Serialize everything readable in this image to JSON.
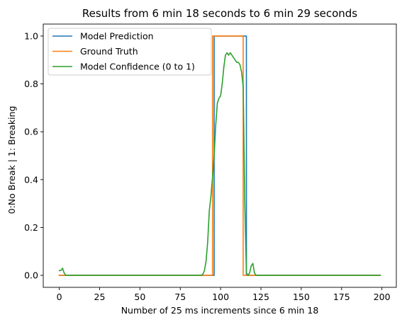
{
  "chart_data": {
    "type": "line",
    "title": "Results from 6 min 18 seconds to 6 min 29 seconds",
    "xlabel": "Number of 25 ms increments since 6 min 18",
    "ylabel": "0:No Break | 1: Breaking",
    "xlim": [
      -9.95,
      208.95
    ],
    "ylim": [
      -0.05,
      1.05
    ],
    "xticks": [
      0,
      25,
      50,
      75,
      100,
      125,
      150,
      175,
      200
    ],
    "yticks": [
      0.0,
      0.2,
      0.4,
      0.6,
      0.8,
      1.0
    ],
    "xtick_labels": [
      "0",
      "25",
      "50",
      "75",
      "100",
      "125",
      "150",
      "175",
      "200"
    ],
    "ytick_labels": [
      "0.0",
      "0.2",
      "0.4",
      "0.6",
      "0.8",
      "1.0"
    ],
    "legend_position": "upper-left",
    "series": [
      {
        "name": "Model Prediction",
        "color": "#1f77b4",
        "x": [
          0,
          96,
          96,
          116,
          116,
          199
        ],
        "y": [
          0,
          0,
          1,
          1,
          0,
          0
        ]
      },
      {
        "name": "Ground Truth",
        "color": "#ff7f0e",
        "x": [
          0,
          95,
          95,
          114,
          114,
          199
        ],
        "y": [
          0,
          0,
          1,
          1,
          0,
          0
        ]
      },
      {
        "name": "Model Confidence (0 to 1)",
        "color": "#2ca02c",
        "x": [
          0,
          1,
          2,
          3,
          4,
          5,
          10,
          20,
          40,
          60,
          80,
          88,
          89,
          90,
          91,
          92,
          93,
          94,
          95,
          96,
          97,
          98,
          99,
          100,
          101,
          102,
          103,
          104,
          105,
          106,
          107,
          108,
          109,
          110,
          111,
          112,
          113,
          114,
          115,
          116,
          117,
          118,
          119,
          120,
          121,
          122,
          123,
          124,
          130,
          150,
          175,
          199
        ],
        "y": [
          0.02,
          0.02,
          0.03,
          0.01,
          0.0,
          0.0,
          0.0,
          0.0,
          0.0,
          0.0,
          0.0,
          0.0,
          0.005,
          0.02,
          0.06,
          0.14,
          0.27,
          0.33,
          0.41,
          0.5,
          0.63,
          0.72,
          0.74,
          0.75,
          0.8,
          0.87,
          0.92,
          0.93,
          0.92,
          0.93,
          0.92,
          0.91,
          0.9,
          0.89,
          0.89,
          0.88,
          0.85,
          0.79,
          0.3,
          0.01,
          0.0,
          0.01,
          0.04,
          0.05,
          0.01,
          0.0,
          0.0,
          0.0,
          0.0,
          0.0,
          0.0,
          0.0
        ]
      }
    ]
  }
}
